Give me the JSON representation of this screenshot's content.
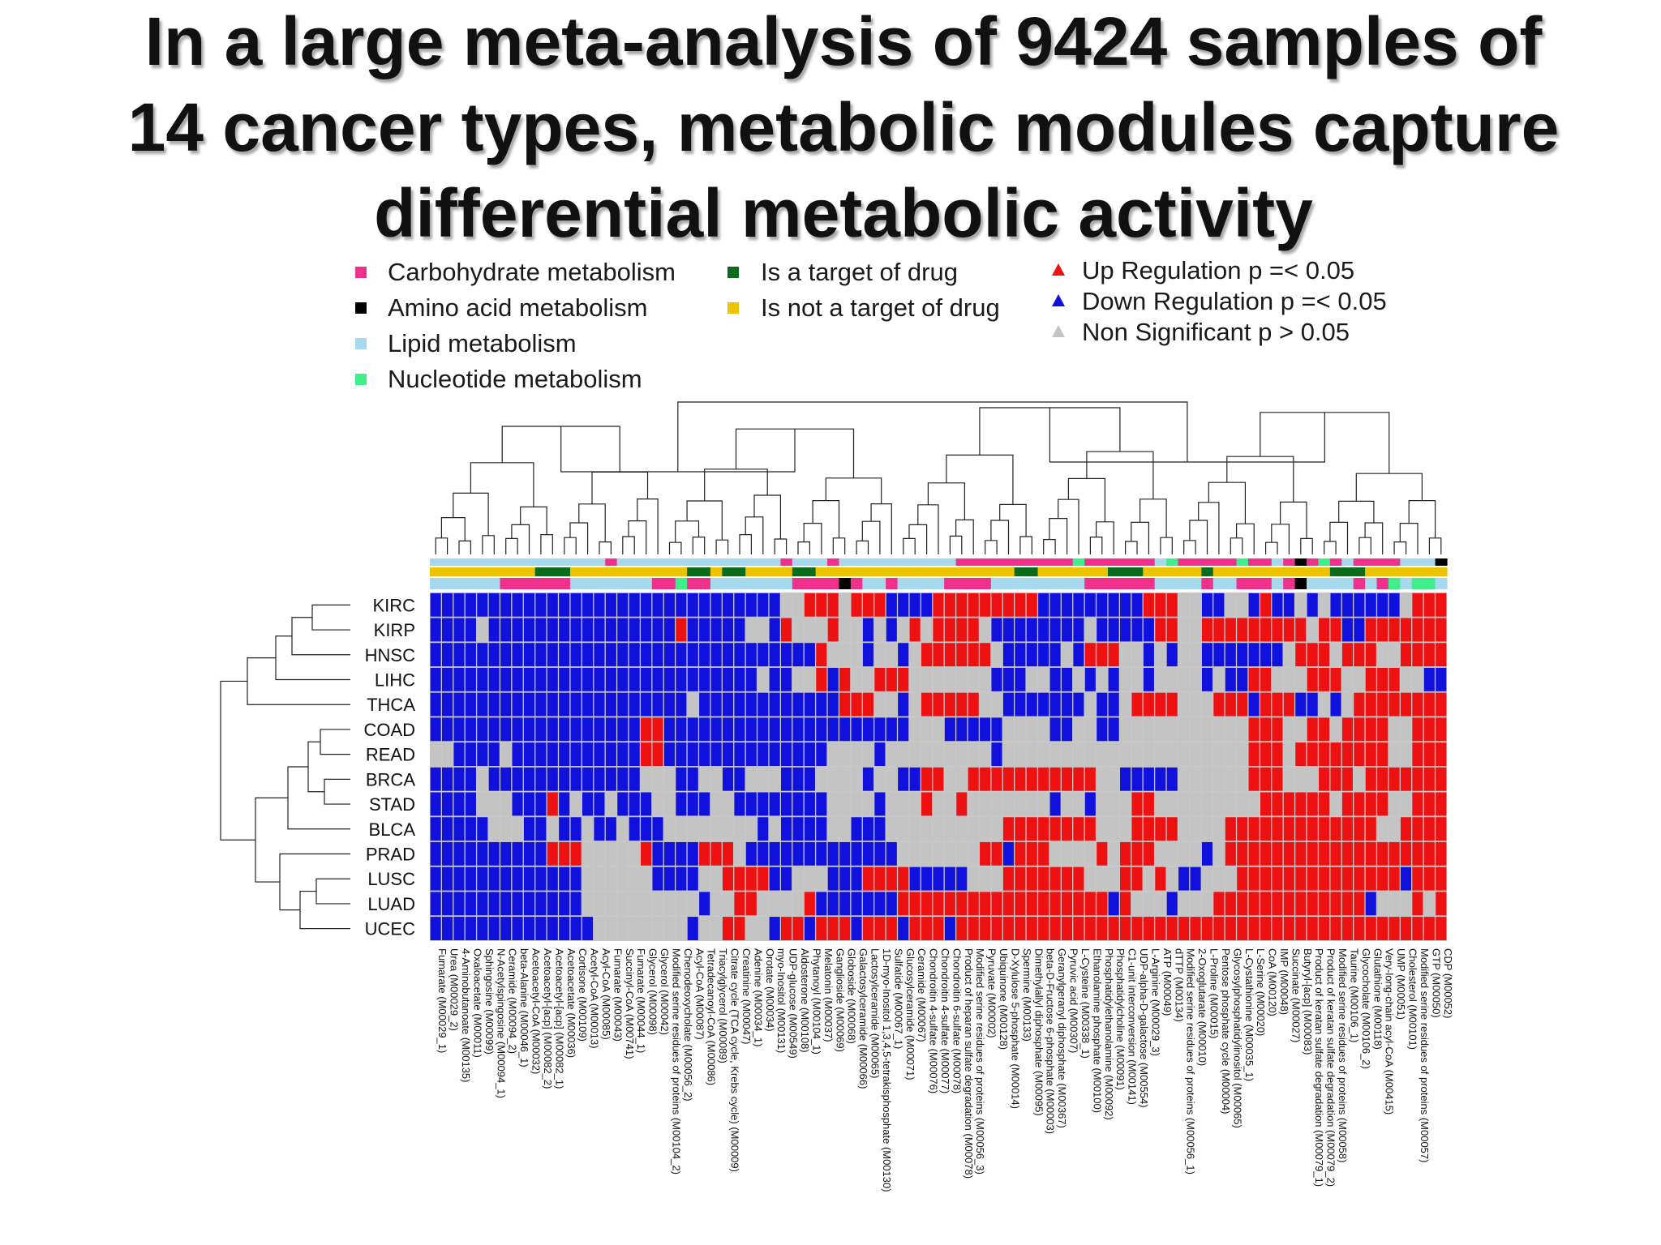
{
  "title_lines": [
    "In a large meta-analysis of 9424 samples of",
    "14 cancer types, metabolic modules capture",
    "differential metabolic activity"
  ],
  "legend": {
    "category": [
      {
        "label": "Carbohydrate metabolism",
        "color": "#f0308a"
      },
      {
        "label": "Amino acid metabolism",
        "color": "#000000"
      },
      {
        "label": "Lipid metabolism",
        "color": "#a6d8ee"
      },
      {
        "label": "Nucleotide metabolism",
        "color": "#3ff08a"
      }
    ],
    "drug": [
      {
        "label": "Is a target of drug",
        "color": "#0b6b1c"
      },
      {
        "label": "Is not a target of drug",
        "color": "#ebc300"
      }
    ],
    "regulation": [
      {
        "label": "Up Regulation p =< 0.05",
        "color": "#ee1111"
      },
      {
        "label": "Down Regulation p =< 0.05",
        "color": "#1111dd"
      },
      {
        "label": "Non Significant p > 0.05",
        "color": "#c4c4c4"
      }
    ]
  },
  "chart_data": {
    "type": "heatmap",
    "rows": [
      "KIRC",
      "KIRP",
      "HNSC",
      "LIHC",
      "THCA",
      "COAD",
      "READ",
      "BRCA",
      "STAD",
      "BLCA",
      "PRAD",
      "LUSC",
      "LUAD",
      "UCEC"
    ],
    "columns": [
      "Fumarate (M00029_1)",
      "Urea (M00029_2)",
      "4-Aminobutanoate (M00135)",
      "Oxaloacetate (M00011)",
      "Sphingosine (M00099)",
      "N-Acetylspingosine (M00094_1)",
      "Ceramide (M00094_2)",
      "beta-Alanine (M00046_1)",
      "Acetoacetyl-CoA (M00032)",
      "Acetoacetyl-[acp] (M00082_2)",
      "Acetoacetyl-[acp] (M00082_1)",
      "Acetoacetate (M00036)",
      "Cortisone (M00109)",
      "Acetyl-CoA (M00013)",
      "Acyl-CoA (M00085)",
      "Fumarate (M00043)",
      "Succinyl-CoA (M00741)",
      "Fumarate (M00044_1)",
      "Glycerol (M00098)",
      "Glycerol (M00042)",
      "Modified serine residues of proteins (M00104_2)",
      "Chenodeoxycholate (M00056_2)",
      "Acyl-CoA (M00087)",
      "Tetradecanoyl-CoA (M00086)",
      "Triacylglycerol (M00089)",
      "Citrate cycle (TCA cycle, Krebs cycle) (M00009)",
      "Creatinine (M00047)",
      "Adenine (M00034_1)",
      "Orotate (M00034)",
      "myo-Inositol (M00131)",
      "UDP-glucose (M00549)",
      "Aldosterone (M00108)",
      "Phytanoyl (M00104_1)",
      "Melatonin (M00037)",
      "Ganglioside (M00069)",
      "Globoside (M00068)",
      "Galactosylceramide (M00066)",
      "Lactosylceramide (M00065)",
      "1D-myo-Inositol 1,3,4,5-tetrakisphosphate (M00130)",
      "Sulfatide (M00067_1)",
      "Glucosylceramide (M00071)",
      "Ceramide (M00067)",
      "Chondroitin 4-sulfate (M00076)",
      "Chondroitin 4-sulfate (M00077)",
      "Chondroitin 6-sulfate (M00078)",
      "Product of heparan sulfate degradation (M00078)",
      "Modified serine residues of proteins (M00056_3)",
      "Pyruvate (M00002)",
      "Ubiquinone (M00128)",
      "D-Xylulose 5-phosphate (M00014)",
      "Spermine (M00133)",
      "Dimethylallyl diphosphate (M00095)",
      "beta-D-Fructose 6-phosphate (M00003)",
      "Geranylgeranyl diphosphate (M00367)",
      "Pyruvic acid (M00307)",
      "L-Cysteine (M00338_1)",
      "Ethanolamine phosphate (M00100)",
      "Phosphatidylethanolamine (M00092)",
      "Phosphatidylcholine (M00091)",
      "C1-unit interconversion (M00141)",
      "UDP-alpha-D-galactose (M00554)",
      "L-Arginine (M00029_3)",
      "ATP (M00049)",
      "dTTP (M00134)",
      "Modified serine residues of proteins (M00056_1)",
      "2-Oxoglutarate (M00010)",
      "L-Proline (M00015)",
      "Pentose phosphate cycle (M00004)",
      "Glycosylphosphatidylinositol (M00065)",
      "L-Cystathionine (M00035_1)",
      "L-Serine (M00020)",
      "CoA (M00120)",
      "IMP (M00048)",
      "Succinate (M00027)",
      "Butyryl-[acp] (M00083)",
      "Product of keratan sulfate degradation (M00079_1)",
      "Product of keratan sulfate degradation (M00079_2)",
      "Modified serine residues of proteins (M00058)",
      "Taurine (M00106_1)",
      "Glycocholate (M00106_2)",
      "Glutathione (M00118)",
      "Very-long-chain acyl-CoA (M00415)",
      "UMP (M00051)",
      "Cholesterol (M00101)",
      "Modified serine residues of proteins (M00057)",
      "GTP (M00050)",
      "CDP (M00052)"
    ],
    "column_category": "lllllllllllllllcllllllllllllllclllcllllllllllccccccccccncccccclncccccncclcacnclcccclllacan",
    "column_drug": "yyyyyyyyygggyyyyyyyyyyggyggyyyyggyyyyyyyyyyyyyyyyyggyyyyyygggyyyyygyyyyyyyyyygggyyyyyyyyyy",
    "regulation_legend": {
      "U": "Up Regulation",
      "D": "Down Regulation",
      "N": "Non Significant"
    },
    "matrix": [
      "DDDDDDDDDDDDDDDDDDDDDDDDDDDDDDNNUUUNUUUDDDDUUUUUUUUUDDDDDDDDDUUUNNDDNNDUDDNDNDDDDDDNUUUUUUU",
      "DDDDNDDDDDDDDDDDDDDDDUDDDDDNNDUNNNUNNDNDNUNUUUUNDDDDDDDDNDDDDDUUNNUUUUUUUUUNUUDDUUUUUUUUUU",
      "DDDDDDDDDDDDDDDDDDDDDDDDDDDDDDDDDUNNNDNNDNUUUUUUNDDDDDNDUUUNNDNDNNDDDDDDDNUUUNUUUNNUUUUUUU",
      "DDDDDDDDDDDDDDDDDDDDDDDDDDDDNDDNNUDUNNUUUNNNNNNNDDDNNDDNDNDNNDNNNNDNDDUUNNNUUUNNUUUNNDDUUU",
      "DDDDDDDDDDDDDDDDDDDDDDNDDDDDDDDDDDDUUUNNDNUUUUUNNDDDDDDDNDDNUUUUNNNUUUDUUUDDNDNUUUUUUUUUU",
      "DDDDDDDDDDDDDDDDDDUUDDDDDDDDDDDDDDDDDDDDDNNNDDDDDNNNNDDNNDDNNNNNNNNNNNUUUNNUUNUUUUNNUUUUUU",
      "NNDDDDNDDDDDDDDDDDUUDDDDDDDDDDDDDDNNNNDNNNNNNNNNDNNNNNNNNNNNNNNNNNNNNNUUUNUUUUUUUUNNUUUUUU",
      "DDDDNDDDDDDDDDDDDDNNNDDNNDDNNNDDDNNNNDNNDDUUNNUUUUUUUUUUUNNDDDDDNNNNNNUUUNNNUUUNUUUUUUUUUU",
      "DDDDNNNDDDUDNDDNDDDNNDDDNNDDDDDDDDNNNNDNNNUNNUNNNNNNNDNNDNNNUUNNNNNNNNNUUUUUUNUUUUNNUUUUUU",
      "DDDDDNNNDDNDDNDDNDDDNNNNNNNNDNDDDDNNDDDNNNNNNNNNNUUUUUUUUNNNUUUUNNNNUUUUUUUUUUUUUNNUUUUUUU",
      "DDDDDDDDDDUUUNNNNNUDDDDUUUNDDDDDDDDDDDDDNNNNNNNUUDUUUNNNNUNUUUNNNNDNUUUUUUUUUUUUUUUUUUUUUU",
      "DDDDDDDDDDDDDNNNNNNDDDDNNUUUUDDNNNDDDUUUUDDDDDNNNUUUUUUUNNNUUNUNDDNNNUUUUUUUUUUUUUUDUUUUUU",
      "DDDDDDDDDDDDDNNNNNNNNNNDNNUUNNNNUDDDDDDDUUUUUUUUUUUUUUUUUUDUNNNDNNNUUUUUUUUUUUUUDNNNUNUUUU",
      "DDDDDDDDDDDDDDNNNNNNNNDNNUUNNDUUDUUUDUUUDUUUDUUUUUUUUUUUUUUUUUUUUUUUUUUUUUUUUUUUUUUUUUUUUU"
    ]
  }
}
